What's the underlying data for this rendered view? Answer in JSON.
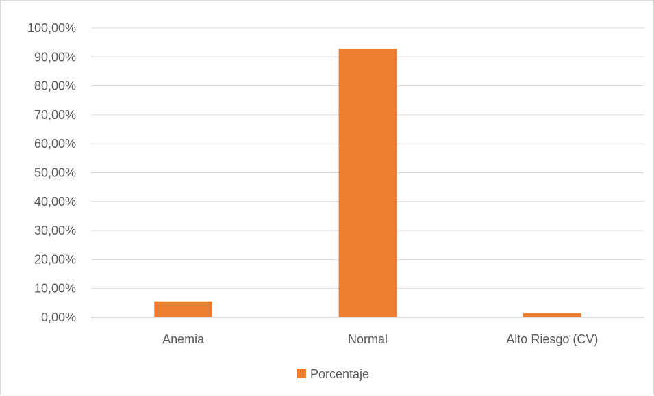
{
  "chart_data": {
    "type": "bar",
    "categories": [
      "Anemia",
      "Normal",
      "Alto Riesgo (CV)"
    ],
    "series": [
      {
        "name": "Porcentaje",
        "values": [
          5.5,
          92.8,
          1.5
        ],
        "color": "#ED7D31"
      }
    ],
    "ylim": [
      0,
      100
    ],
    "yticks": [
      0,
      10,
      20,
      30,
      40,
      50,
      60,
      70,
      80,
      90,
      100
    ],
    "ytick_labels": [
      "0,00%",
      "10,00%",
      "20,00%",
      "30,00%",
      "40,00%",
      "50,00%",
      "60,00%",
      "70,00%",
      "80,00%",
      "90,00%",
      "100,00%"
    ],
    "grid": true,
    "legend_position": "bottom-center",
    "title": "",
    "xlabel": "",
    "ylabel": ""
  },
  "legend": {
    "label": "Porcentaje"
  }
}
